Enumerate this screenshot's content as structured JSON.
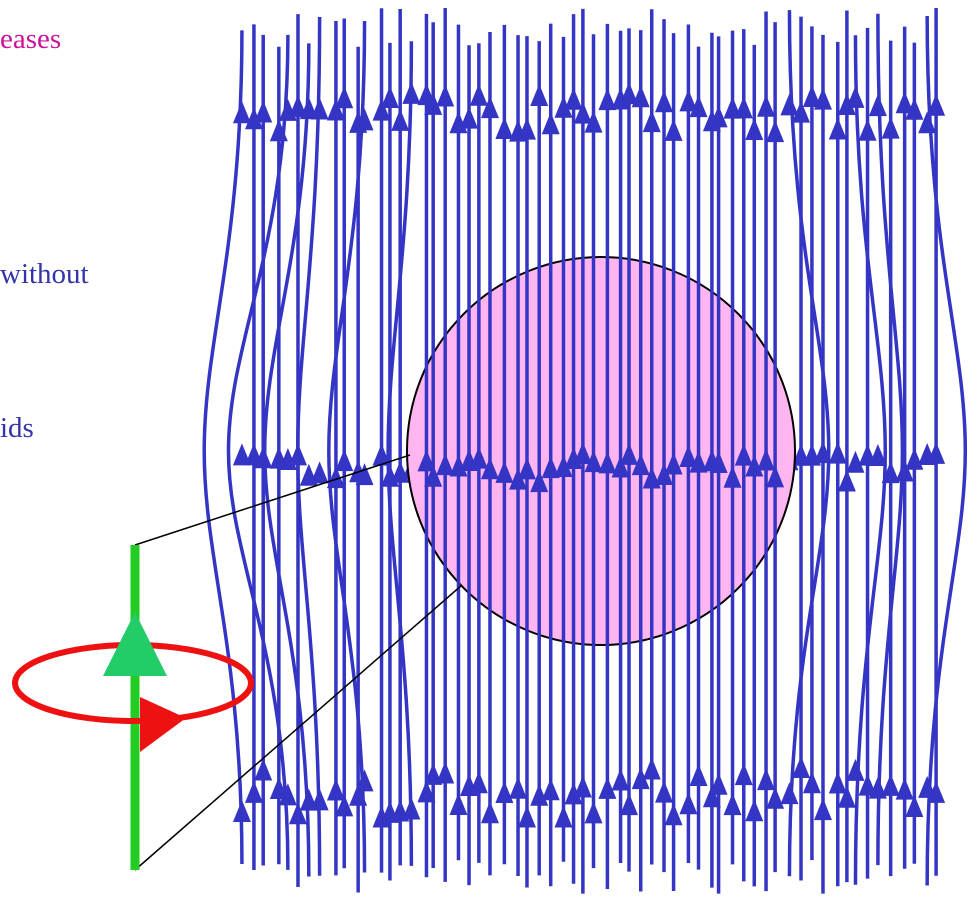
{
  "texts": {
    "line1": "eases",
    "line2": "without",
    "line3": "ids"
  }
}
